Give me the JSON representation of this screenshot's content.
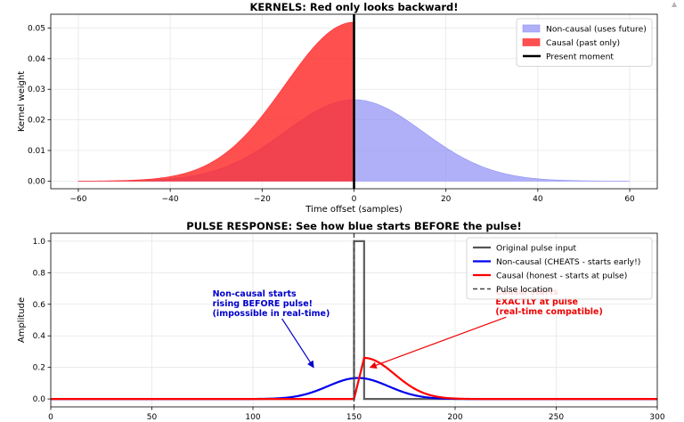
{
  "chart_data": [
    {
      "type": "area",
      "title": "KERNELS: Red only looks backward!",
      "xlabel": "Time offset (samples)",
      "ylabel": "Kernel weight",
      "xlim": [
        -66,
        66
      ],
      "ylim": [
        -0.0025,
        0.0545
      ],
      "xticks": [
        -60,
        -40,
        -20,
        0,
        20,
        40,
        60
      ],
      "yticks": [
        0.0,
        0.01,
        0.02,
        0.03,
        0.04,
        0.05
      ],
      "grid": true,
      "legend_position": "upper-right",
      "series": [
        {
          "name": "Non-causal (uses future)",
          "kind": "gaussian-fill",
          "x_range": [
            -60,
            60
          ],
          "peak": 0.0266,
          "sigma": 15,
          "color": "#8f8ff5"
        },
        {
          "name": "Causal (past only)",
          "kind": "half-gaussian-fill",
          "x_range": [
            -60,
            0
          ],
          "peak": 0.0519,
          "sigma": 15,
          "color": "#ff2a2a"
        },
        {
          "name": "Present moment",
          "kind": "vline",
          "x": 0,
          "color": "#000000"
        }
      ]
    },
    {
      "type": "line",
      "title": "PULSE RESPONSE: See how blue starts BEFORE the pulse!",
      "xlabel": "",
      "ylabel": "Amplitude",
      "xlim": [
        0,
        300
      ],
      "ylim": [
        -0.05,
        1.05
      ],
      "xticks": [
        0,
        50,
        100,
        150,
        200,
        250,
        300
      ],
      "yticks": [
        0.0,
        0.2,
        0.4,
        0.6,
        0.8,
        1.0
      ],
      "grid": true,
      "legend_position": "upper-right",
      "series": [
        {
          "name": "Original pulse input",
          "kind": "pulse",
          "start": 150,
          "end": 155,
          "value": 1.0,
          "color": "#555555"
        },
        {
          "name": "Non-causal (CHEATS - starts early!)",
          "kind": "gaussian",
          "center": 152,
          "sigma": 15,
          "peak": 0.133,
          "color": "#0000ee"
        },
        {
          "name": "Causal (honest - starts at pulse)",
          "kind": "causal-response",
          "start": 150,
          "peak_x": 155,
          "peak": 0.26,
          "sigma": 15,
          "color": "#ff0000"
        },
        {
          "name": "Pulse location",
          "kind": "dashed-vline",
          "x": 150,
          "color": "#444444"
        }
      ],
      "annotations": [
        {
          "text": [
            "Non-causal starts",
            "rising BEFORE pulse!",
            "(impossible in real-time)"
          ],
          "color": "#0000cc",
          "text_at": [
            80,
            0.65
          ],
          "arrow_to": [
            130,
            0.2
          ]
        },
        {
          "text": [
            "Causal starts",
            "EXACTLY at pulse",
            "(real-time compatible)"
          ],
          "color": "#ee0000",
          "text_at": [
            220,
            0.66
          ],
          "arrow_to": [
            158,
            0.2
          ]
        }
      ]
    }
  ],
  "ui": {
    "corner_icon": "▲"
  }
}
